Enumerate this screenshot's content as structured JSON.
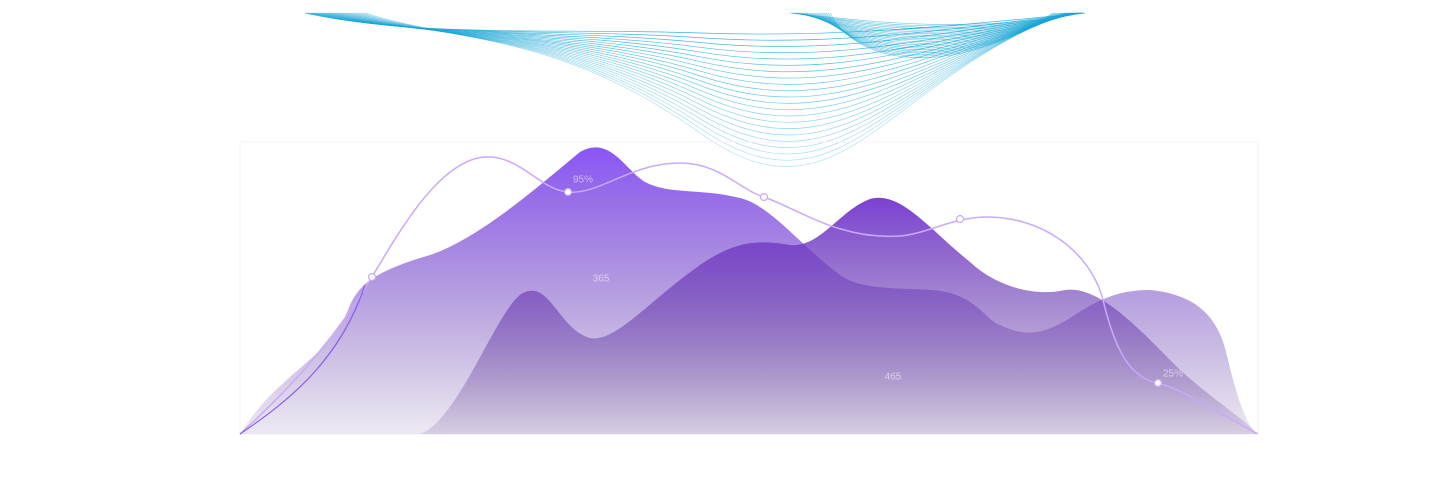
{
  "labels": [
    "95%",
    "365",
    "465",
    "25%"
  ]
}
